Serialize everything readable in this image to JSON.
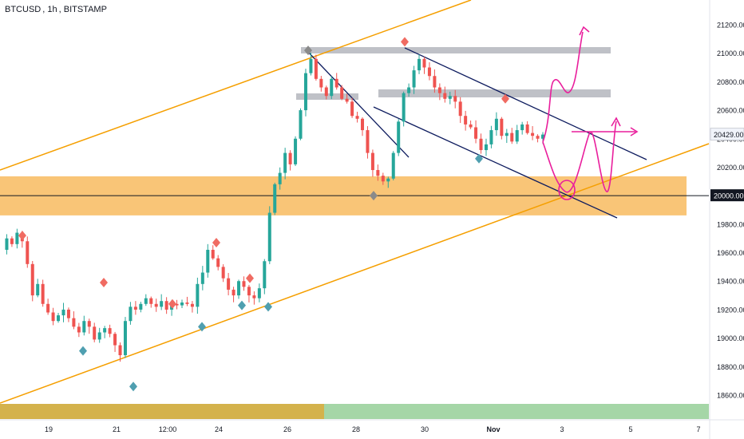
{
  "header": {
    "symbol": "BTCUSD",
    "interval": "1h",
    "exchange": "BITSTAMP"
  },
  "chart_data": {
    "type": "candlestick",
    "title": "BTCUSD, 1h, BITSTAMP",
    "ylim": [
      18400,
      21450
    ],
    "y_ticks": [
      18600,
      18800,
      19000,
      19200,
      19400,
      19600,
      19800,
      20000,
      20200,
      20400,
      20600,
      20800,
      21000,
      21200
    ],
    "y_tick_labels": [
      "18600.00",
      "18800.00",
      "19000.00",
      "19200.00",
      "19400.00",
      "19600.00",
      "19800.00",
      "20000.00",
      "20200.00",
      "20400.00",
      "20600.00",
      "20800.00",
      "21000.00",
      "21200.00"
    ],
    "x_tick_labels": [
      "19",
      "21",
      "12:00",
      "24",
      "26",
      "28",
      "30",
      "Nov",
      "3",
      "5",
      "7"
    ],
    "last_price": "20429.00",
    "last_price_value": 20429,
    "level_label": "20000.00",
    "level_value": 20000,
    "support_zone": [
      19940,
      20080
    ],
    "resistance_zones": [
      [
        20980,
        21030
      ],
      [
        20700,
        20750
      ]
    ],
    "series": [
      {
        "name": "",
        "values": [
          19620,
          19700,
          19660,
          19740,
          19680,
          19520,
          19300,
          19380,
          19240,
          19180,
          19120,
          19160,
          19200,
          19140,
          19080,
          19040,
          19120,
          19080,
          18990,
          19040,
          19070,
          19030,
          18950,
          18880,
          19120,
          19220,
          19200,
          19240,
          19280,
          19240,
          19220,
          19260,
          19200,
          19240,
          19230,
          19250,
          19240,
          19220,
          19380,
          19460,
          19620,
          19560,
          19500,
          19420,
          19340,
          19300,
          19400,
          19360,
          19300,
          19280,
          19350,
          19540,
          19880,
          20080,
          20160,
          20300,
          20220,
          20400,
          20600,
          20860,
          20960,
          20820,
          20760,
          20700,
          20820,
          20760,
          20680,
          20660,
          20560,
          20540,
          20460,
          20300,
          20180,
          20140,
          20100,
          20120,
          20300,
          20520,
          20720,
          20760,
          20880,
          20960,
          20900,
          20840,
          20760,
          20720,
          20680,
          20700,
          20660,
          20560,
          20500,
          20480,
          20400,
          20320,
          20360,
          20460,
          20540,
          20420,
          20440,
          20380,
          20460,
          20500,
          20440,
          20420,
          20400,
          20429
        ]
      }
    ],
    "pivot_highs": [
      19720,
      19390,
      19240,
      19670,
      19420,
      21020,
      21080,
      20680
    ],
    "pivot_lows": [
      18910,
      18660,
      19080,
      19230,
      19220,
      20000,
      20260
    ],
    "colors": {
      "up": "#26a69a",
      "down": "#ef5350",
      "channel": "#f59f00",
      "trend": "#0d1b5e",
      "projection": "#e91e9c",
      "zone": "#f7b24a",
      "level_line": "#131722",
      "grey_zone": "#9598a1",
      "pivot_high": "#f06b62",
      "pivot_low": "#4f9fb0",
      "pivot_grey": "#8a8a8a",
      "bar_gold": "#d4b24c",
      "bar_green": "#a5d6a7"
    }
  }
}
